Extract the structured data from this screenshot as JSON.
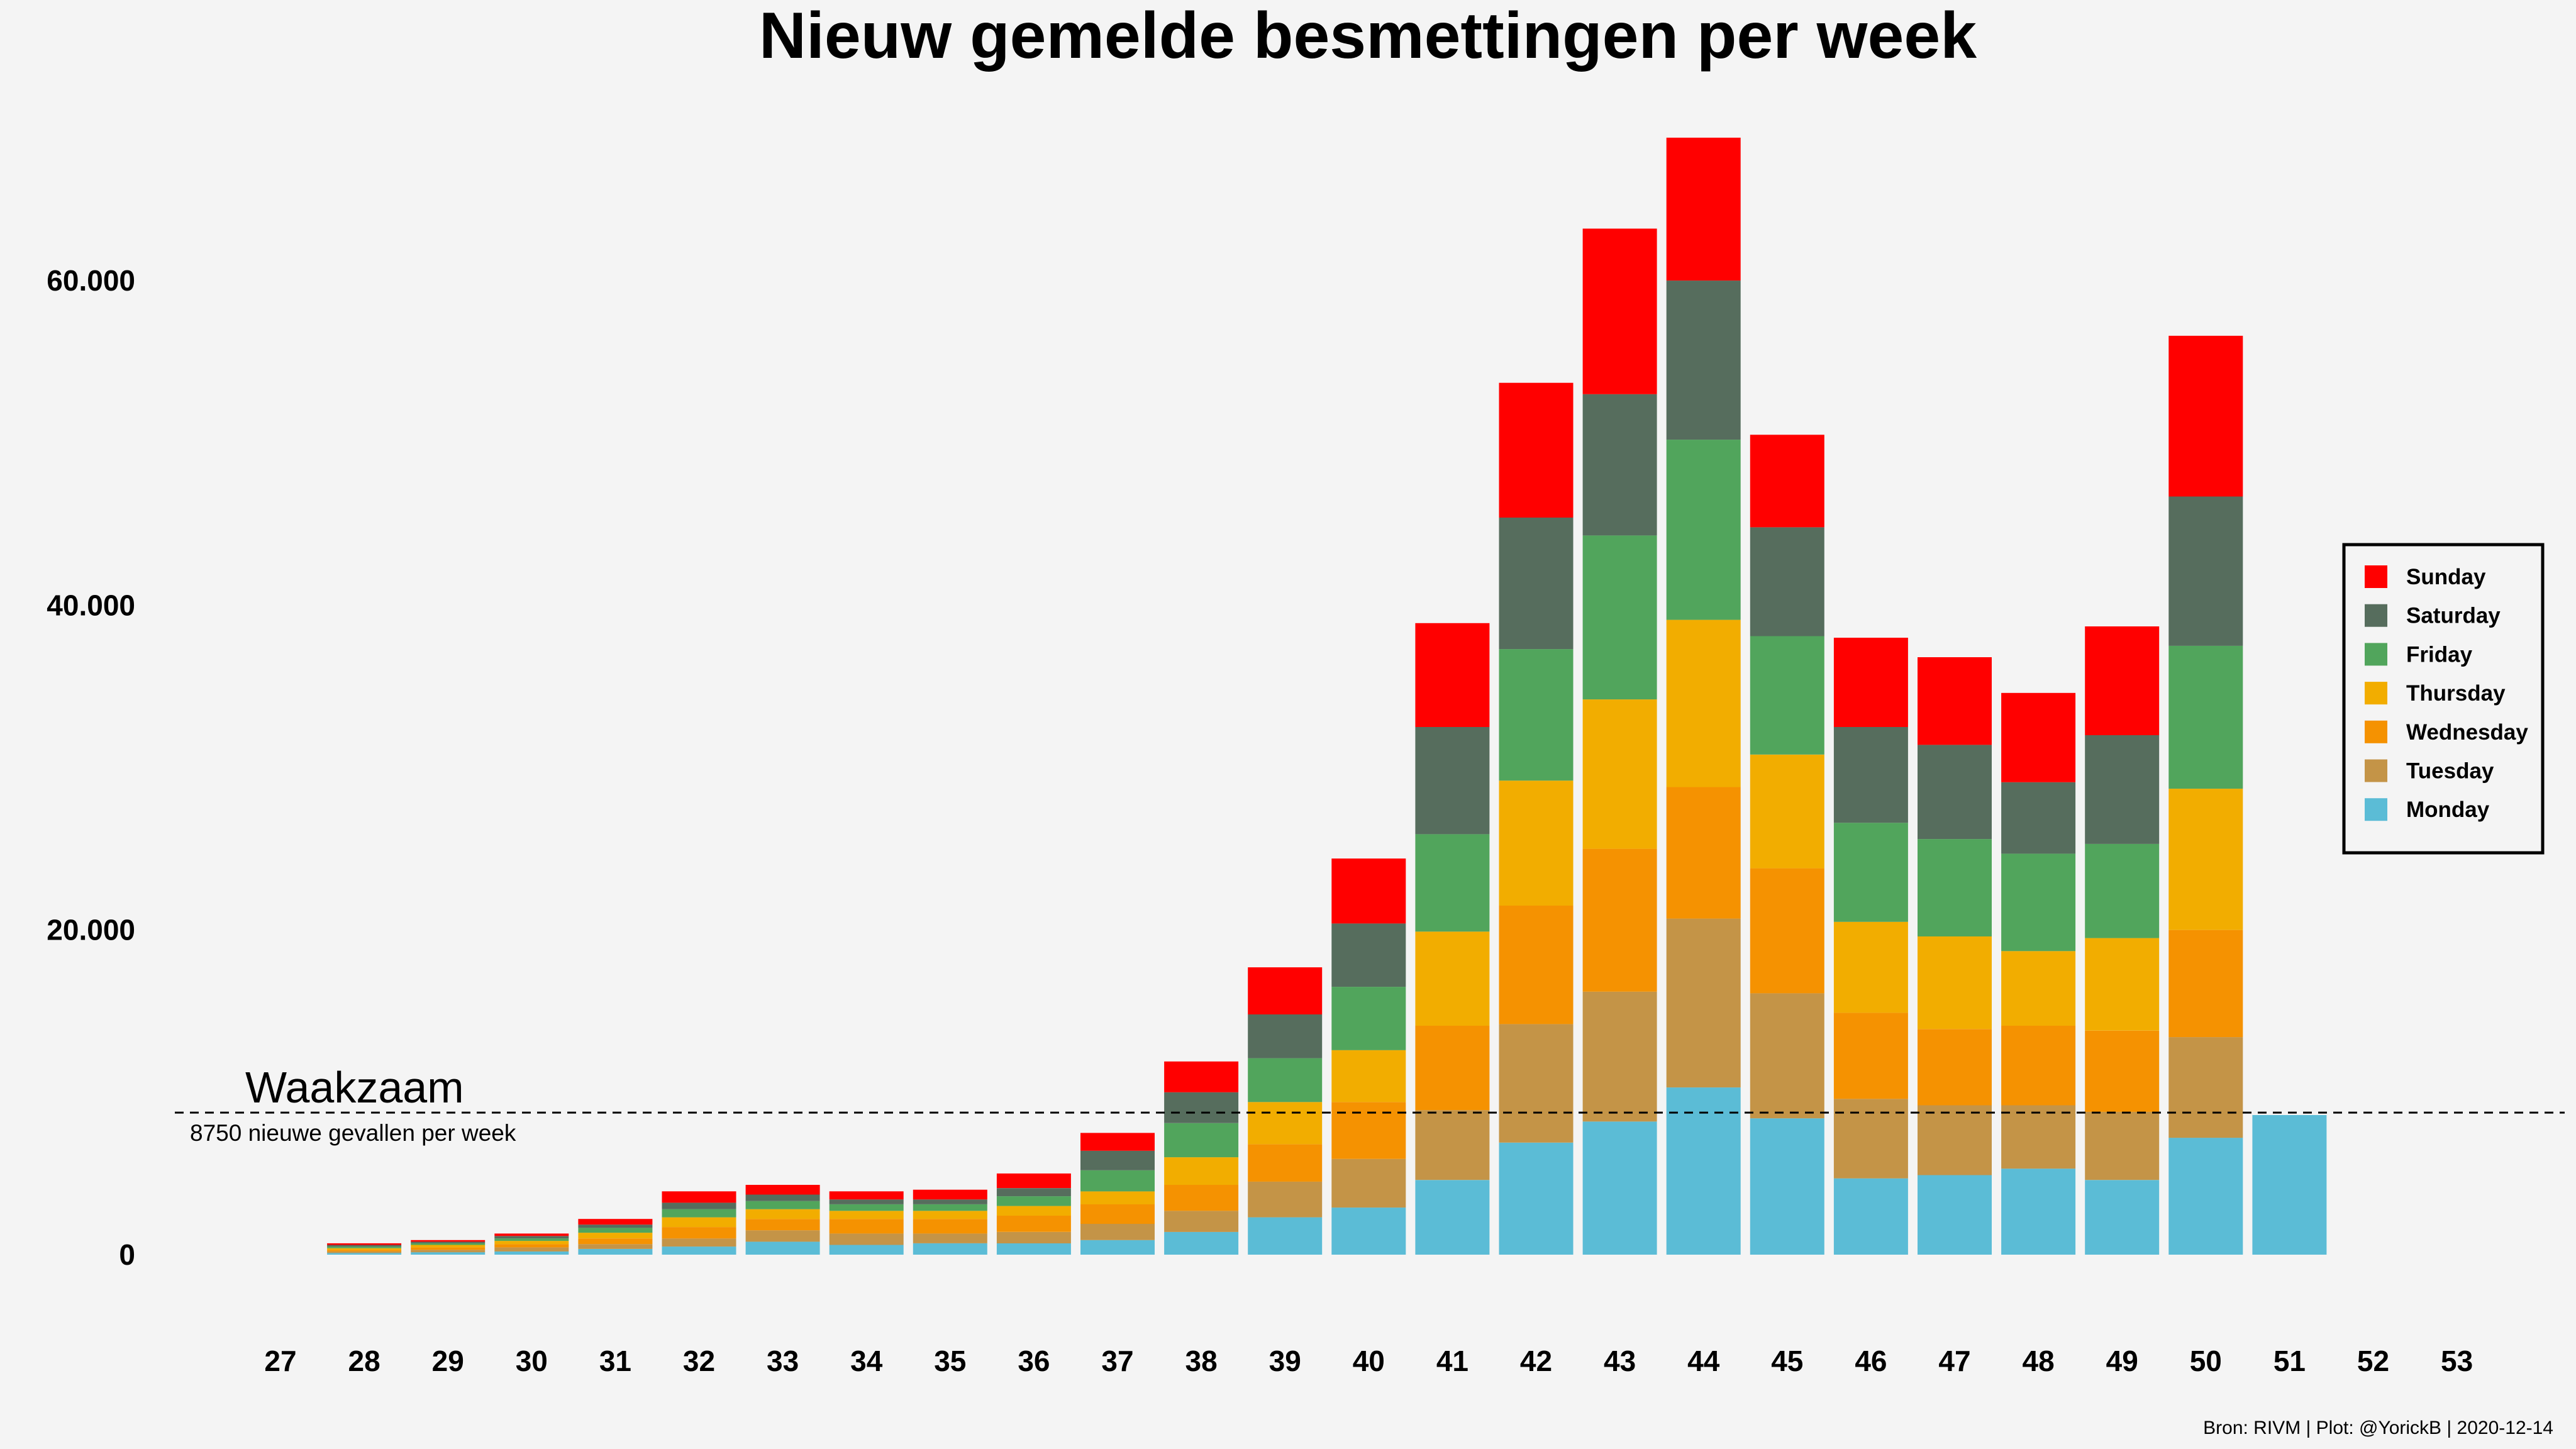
{
  "chart_data": {
    "type": "bar",
    "stacked": true,
    "title": "Nieuw gemelde besmettingen per week",
    "xlabel": "",
    "ylabel": "",
    "ylim": [
      -6000,
      69000
    ],
    "yticks": [
      0,
      20000,
      40000,
      60000
    ],
    "ytick_labels": [
      "0",
      "20.000",
      "40.000",
      "60.000"
    ],
    "grid": false,
    "legend_position": "right",
    "categories": [
      "27",
      "28",
      "29",
      "30",
      "31",
      "32",
      "33",
      "34",
      "35",
      "36",
      "37",
      "38",
      "39",
      "40",
      "41",
      "42",
      "43",
      "44",
      "45",
      "46",
      "47",
      "48",
      "49",
      "50",
      "51",
      "52",
      "53"
    ],
    "series": [
      {
        "name": "Monday",
        "color": "#5bbcd6",
        "values": [
          0,
          100,
          150,
          200,
          350,
          500,
          800,
          600,
          700,
          700,
          900,
          1400,
          2300,
          2900,
          4600,
          6900,
          8200,
          10300,
          8400,
          4700,
          4900,
          5300,
          4600,
          7200,
          8600,
          0,
          0
        ]
      },
      {
        "name": "Tuesday",
        "color": "#c49447",
        "values": [
          0,
          100,
          150,
          250,
          300,
          500,
          700,
          700,
          600,
          700,
          1000,
          1300,
          2200,
          3000,
          4300,
          7300,
          8000,
          10400,
          7700,
          4900,
          4300,
          3900,
          4200,
          6200,
          0,
          0,
          0
        ]
      },
      {
        "name": "Wednesday",
        "color": "#f59201",
        "values": [
          0,
          100,
          150,
          200,
          350,
          700,
          700,
          900,
          900,
          1000,
          1200,
          1600,
          2300,
          3500,
          5200,
          7300,
          8800,
          8100,
          7700,
          5300,
          4700,
          4900,
          5000,
          6600,
          0,
          0,
          0
        ]
      },
      {
        "name": "Thursday",
        "color": "#f2ad00",
        "values": [
          0,
          100,
          150,
          200,
          350,
          600,
          600,
          500,
          500,
          600,
          800,
          1700,
          2600,
          3200,
          5800,
          7700,
          9200,
          10300,
          7000,
          5600,
          5700,
          4600,
          5700,
          8700,
          0,
          0,
          0
        ]
      },
      {
        "name": "Friday",
        "color": "#51a55c",
        "values": [
          0,
          100,
          100,
          150,
          300,
          500,
          500,
          400,
          400,
          600,
          1300,
          2100,
          2700,
          3900,
          6000,
          8100,
          10100,
          11100,
          7300,
          6100,
          6000,
          6000,
          5800,
          8800,
          0,
          0,
          0
        ]
      },
      {
        "name": "Saturday",
        "color": "#566d5d",
        "values": [
          0,
          100,
          100,
          150,
          200,
          400,
          400,
          300,
          300,
          500,
          1200,
          1900,
          2700,
          3900,
          6600,
          8100,
          8700,
          9800,
          6700,
          5900,
          5800,
          4400,
          6700,
          9200,
          0,
          0,
          0
        ]
      },
      {
        "name": "Sunday",
        "color": "#ff0000",
        "values": [
          0,
          100,
          100,
          150,
          350,
          700,
          600,
          500,
          600,
          900,
          1100,
          1900,
          2900,
          4000,
          6400,
          8300,
          10200,
          8800,
          5700,
          5500,
          5400,
          5500,
          6700,
          9900,
          0,
          0,
          0
        ]
      }
    ],
    "reference_line": {
      "value": 8750,
      "label": "Waakzaam",
      "sublabel": "8750 nieuwe gevallen per week"
    },
    "legend_order": [
      "Sunday",
      "Saturday",
      "Friday",
      "Thursday",
      "Wednesday",
      "Tuesday",
      "Monday"
    ]
  },
  "source_text": "Bron: RIVM | Plot: @YorickB |  2020-12-14"
}
